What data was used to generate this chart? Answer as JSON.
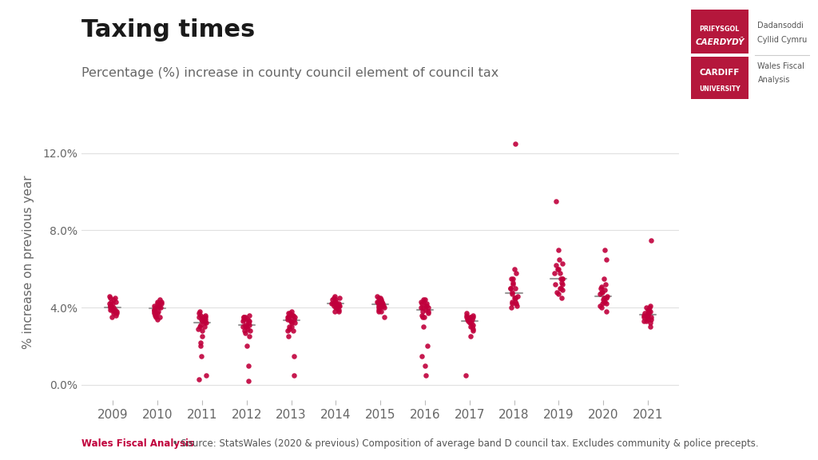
{
  "title": "Taxing times",
  "subtitle": "Percentage (%) increase in county council element of council tax",
  "ylabel": "% increase on previous year",
  "footer_bold": "Wales Fiscal Analysis",
  "footer_text": " • Source: StatsWales (2020 & previous) Composition of average band D council tax. Excludes community & police precepts.",
  "years": [
    2009,
    2010,
    2011,
    2012,
    2013,
    2014,
    2015,
    2016,
    2017,
    2018,
    2019,
    2020,
    2021
  ],
  "data": {
    "2009": [
      3.5,
      3.7,
      3.9,
      4.0,
      4.0,
      4.1,
      4.2,
      4.3,
      4.4,
      4.5,
      4.6,
      3.8,
      3.6,
      4.0,
      3.9,
      4.1,
      4.3,
      3.7,
      4.2,
      4.0,
      3.8,
      4.5,
      4.1,
      3.9
    ],
    "2010": [
      3.4,
      3.5,
      3.6,
      3.7,
      3.8,
      3.9,
      4.0,
      4.0,
      4.1,
      4.2,
      4.3,
      4.4,
      3.5,
      3.8,
      4.1,
      4.3,
      3.7,
      4.2,
      3.9,
      4.0,
      3.6,
      4.1
    ],
    "2011": [
      2.0,
      2.5,
      2.8,
      3.0,
      3.2,
      3.3,
      3.4,
      3.5,
      3.5,
      3.6,
      3.7,
      3.8,
      2.9,
      3.1,
      3.4,
      3.6,
      3.0,
      1.5,
      2.2,
      3.3,
      3.5,
      3.2,
      0.3,
      0.5
    ],
    "2012": [
      2.5,
      2.8,
      3.0,
      3.1,
      3.2,
      3.3,
      3.3,
      3.4,
      3.5,
      3.5,
      3.6,
      2.9,
      3.1,
      3.3,
      3.0,
      2.7,
      3.2,
      3.4,
      2.8,
      3.0,
      3.5,
      0.2,
      1.0,
      2.0
    ],
    "2013": [
      2.8,
      3.0,
      3.2,
      3.3,
      3.4,
      3.5,
      3.5,
      3.6,
      3.7,
      3.8,
      3.5,
      2.9,
      3.3,
      3.6,
      3.0,
      2.8,
      3.5,
      3.7,
      3.2,
      3.4,
      3.6,
      0.5,
      1.5,
      2.5
    ],
    "2014": [
      3.8,
      4.0,
      4.1,
      4.2,
      4.3,
      4.4,
      4.5,
      4.0,
      3.9,
      4.1,
      4.2,
      4.3,
      4.4,
      4.1,
      4.2,
      4.3,
      4.5,
      4.6,
      4.2,
      4.0,
      3.8,
      4.1
    ],
    "2015": [
      3.5,
      3.8,
      4.0,
      4.1,
      4.2,
      4.3,
      4.4,
      4.5,
      4.6,
      4.0,
      4.1,
      4.2,
      4.3,
      4.4,
      4.0,
      3.9,
      4.1,
      4.2,
      4.5,
      4.3,
      4.1,
      3.8
    ],
    "2016": [
      0.5,
      1.0,
      1.5,
      2.0,
      3.0,
      3.5,
      4.0,
      4.1,
      4.2,
      4.3,
      4.4,
      3.8,
      3.9,
      4.0,
      4.1,
      3.5,
      3.7,
      4.2,
      4.3,
      3.6,
      4.0,
      3.8,
      4.4
    ],
    "2017": [
      2.5,
      3.0,
      3.2,
      3.3,
      3.4,
      3.5,
      3.5,
      3.6,
      3.5,
      3.4,
      3.3,
      3.2,
      2.8,
      3.1,
      3.4,
      3.5,
      3.6,
      3.7,
      2.9,
      3.0,
      0.5
    ],
    "2018": [
      4.0,
      4.5,
      5.0,
      5.5,
      6.0,
      5.0,
      4.5,
      4.3,
      4.2,
      4.8,
      5.2,
      5.8,
      12.5,
      4.1,
      4.3,
      4.5,
      5.0,
      5.5,
      4.7,
      4.2,
      4.6,
      5.3
    ],
    "2019": [
      4.5,
      5.0,
      5.5,
      6.0,
      6.5,
      7.0,
      9.5,
      5.0,
      4.8,
      5.2,
      5.8,
      6.2,
      5.5,
      4.9,
      5.3,
      6.0,
      5.8,
      5.2,
      4.7,
      5.5,
      6.3
    ],
    "2020": [
      3.8,
      4.0,
      4.2,
      4.5,
      4.8,
      5.0,
      5.5,
      6.5,
      7.0,
      4.3,
      4.1,
      4.5,
      4.6,
      4.7,
      4.4,
      4.2,
      5.2,
      4.9,
      4.3,
      4.8,
      5.1
    ],
    "2021": [
      3.0,
      3.2,
      3.4,
      3.5,
      3.6,
      3.7,
      3.8,
      3.9,
      4.0,
      4.1,
      7.5,
      3.3,
      3.5,
      3.7,
      3.8,
      3.6,
      3.4,
      3.9,
      4.0,
      3.7,
      3.5,
      3.3
    ]
  },
  "violin_color": "#d8d8d8",
  "violin_edge_color": "#bbbbbb",
  "dot_color": "#c0003c",
  "median_color": "#999999",
  "grid_color": "#e0e0e0",
  "title_color": "#1a1a1a",
  "subtitle_color": "#666666",
  "ylabel_color": "#666666",
  "tick_color": "#666666",
  "footer_bold_color": "#c0003c",
  "footer_text_color": "#555555",
  "ylim": [
    -0.8,
    13.5
  ],
  "yticks": [
    0,
    4,
    8,
    12
  ],
  "ytick_labels": [
    "0.0%",
    "4.0%",
    "8.0%",
    "12.0%"
  ],
  "logo_top_color": "#b5173c",
  "logo_bottom_color": "#b5173c",
  "logo_text_color": "#ffffff"
}
